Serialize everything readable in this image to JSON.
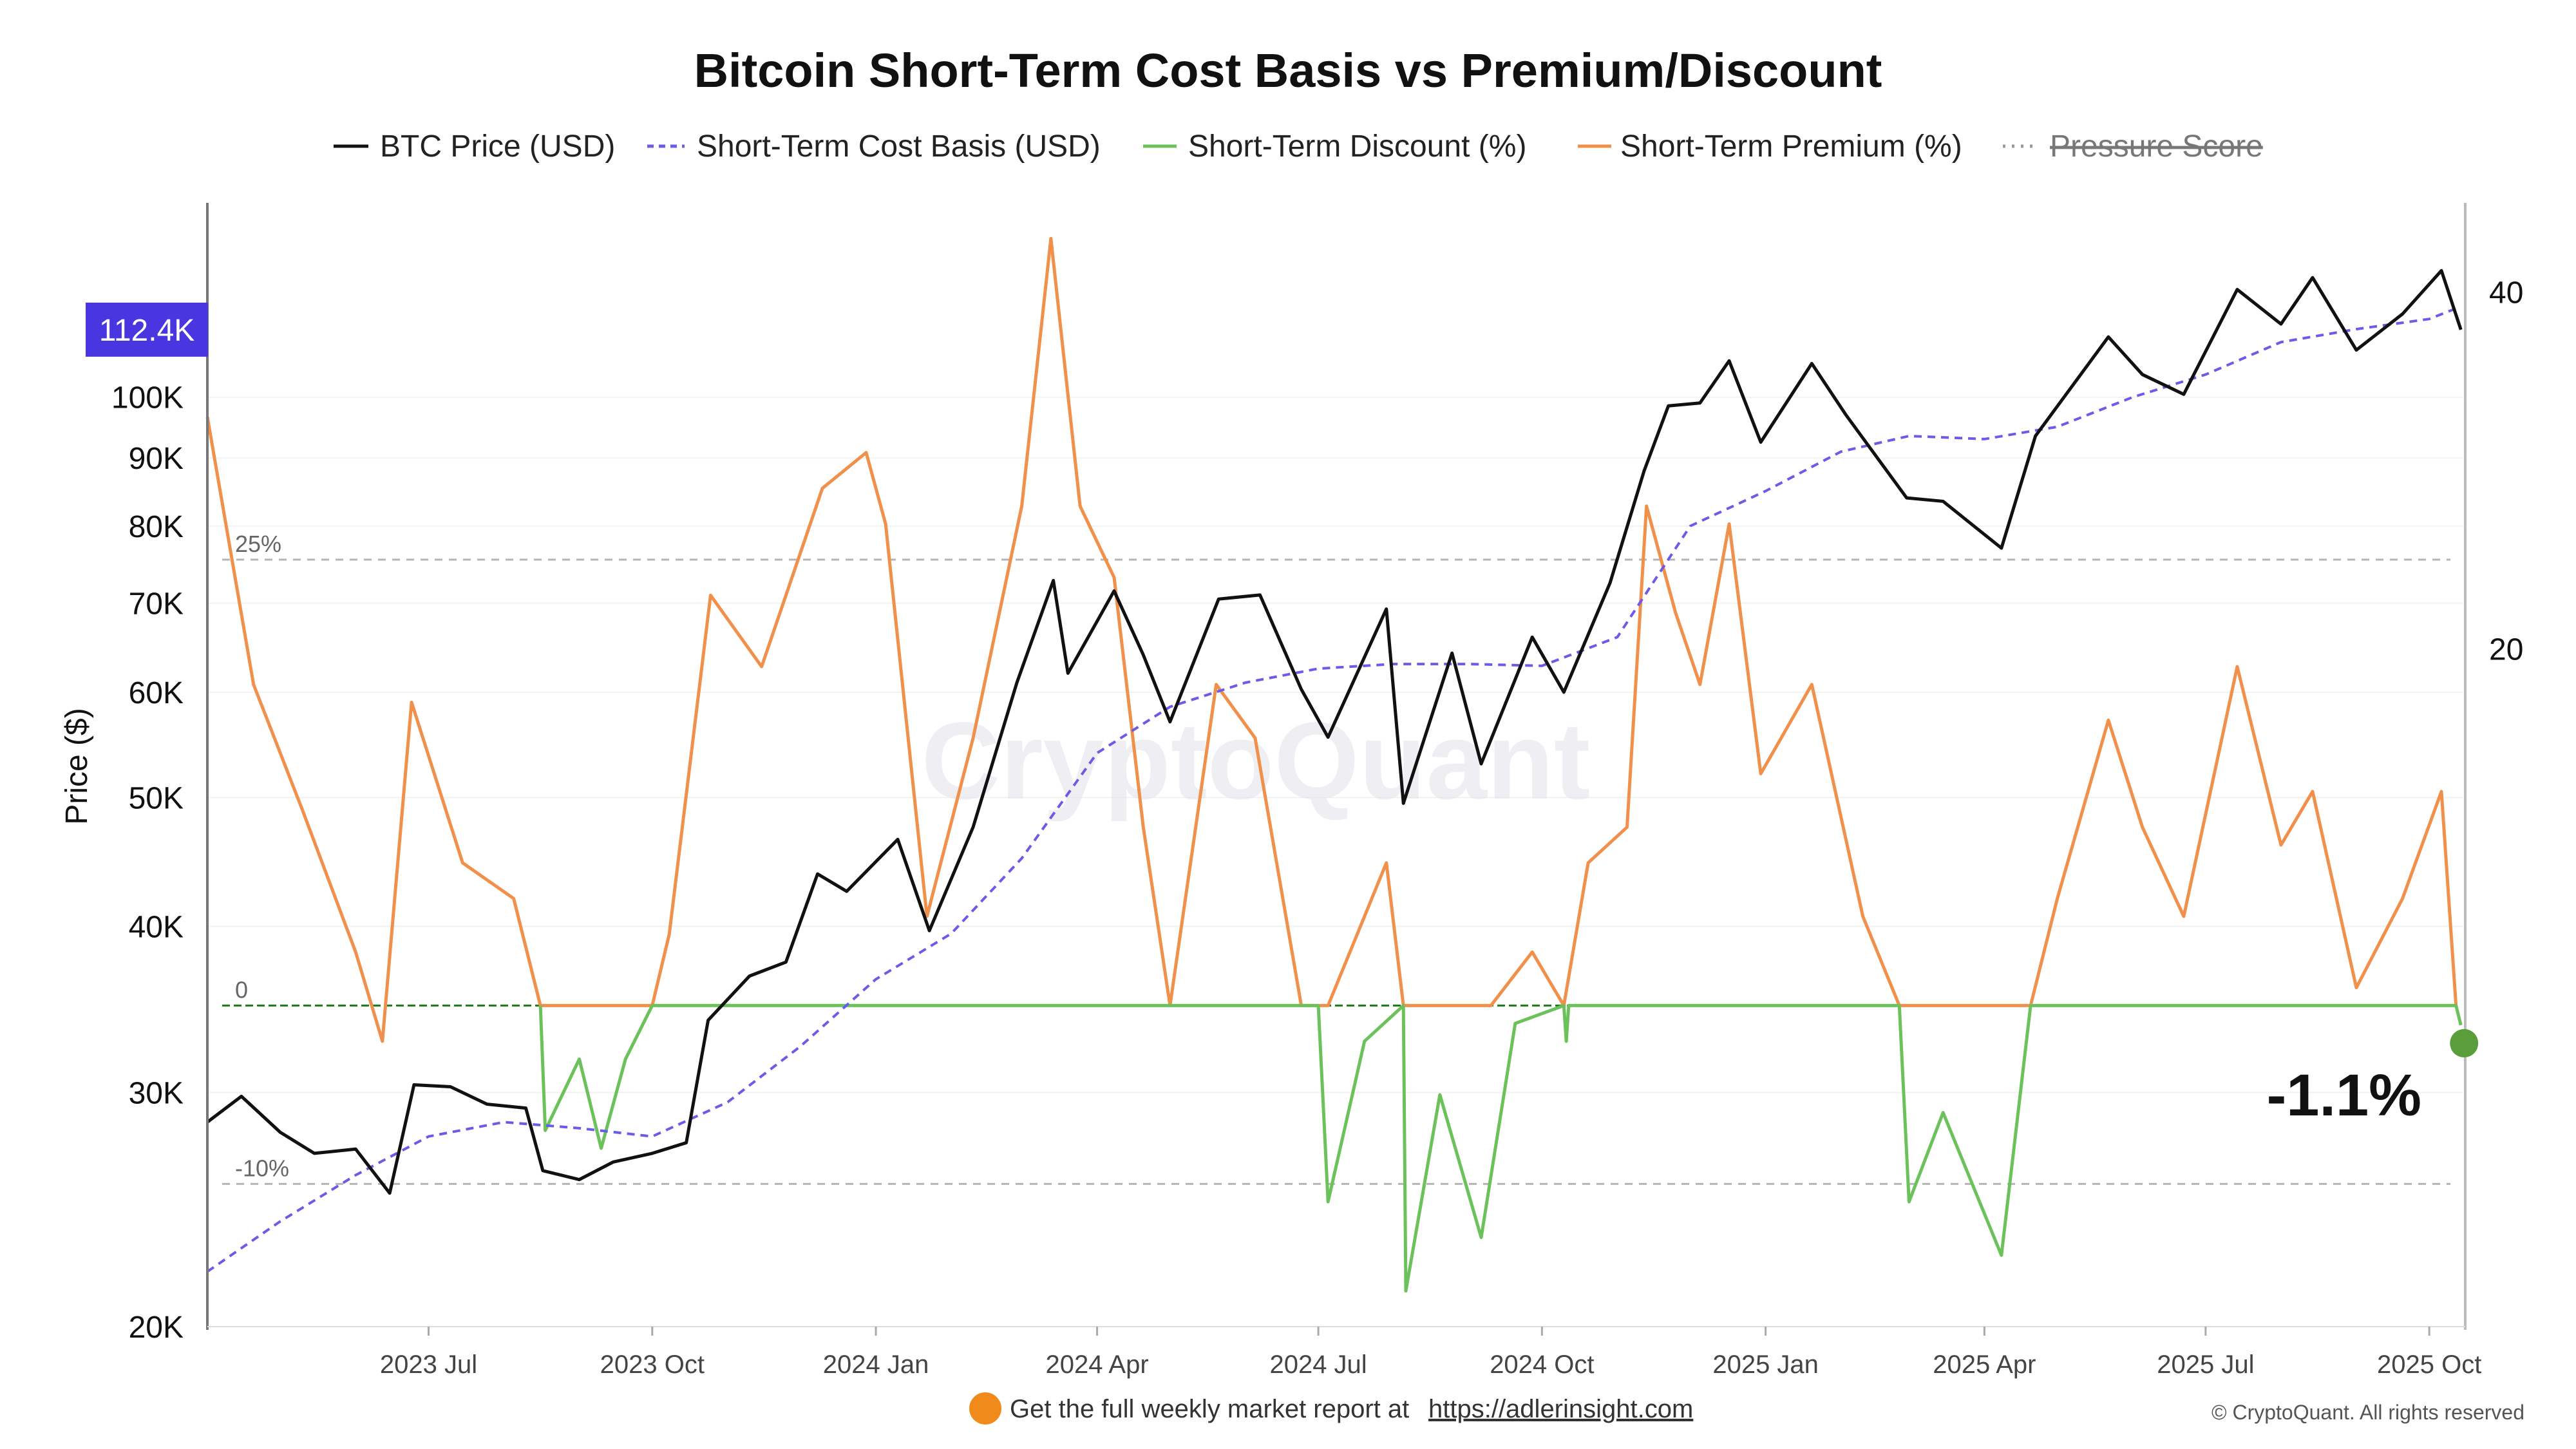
{
  "chart_data": {
    "type": "line",
    "title": "Bitcoin Short-Term Cost Basis vs Premium/Discount",
    "ylabel": "Price ($)",
    "y_scale": "log",
    "ylim": [
      20000,
      140000
    ],
    "y_ticks": [
      "20K",
      "30K",
      "40K",
      "50K",
      "60K",
      "70K",
      "80K",
      "90K",
      "100K"
    ],
    "y_tick_values": [
      20000,
      30000,
      40000,
      50000,
      60000,
      70000,
      80000,
      90000,
      100000
    ],
    "y2_ticks": [
      "20",
      "40"
    ],
    "y2_tick_values": [
      20,
      40
    ],
    "y2lim": [
      -18,
      45
    ],
    "x_ticks": [
      "2023 Jul",
      "2023 Oct",
      "2024 Jan",
      "2024 Apr",
      "2024 Jul",
      "2024 Oct",
      "2025 Jan",
      "2025 Apr",
      "2025 Jul",
      "2025 Oct"
    ],
    "x_tick_values": [
      "2023-07-01",
      "2023-10-01",
      "2024-01-01",
      "2024-04-01",
      "2024-07-01",
      "2024-10-01",
      "2025-01-01",
      "2025-04-01",
      "2025-07-01",
      "2025-10-01"
    ],
    "xlim": [
      "2023-04-01",
      "2025-10-15"
    ],
    "legend": [
      {
        "label": "BTC Price (USD)",
        "color": "#111111",
        "style": "solid",
        "hidden": false
      },
      {
        "label": "Short-Term Cost Basis (USD)",
        "color": "#6b5ce7",
        "style": "dashed",
        "hidden": false
      },
      {
        "label": "Short-Term Discount (%)",
        "color": "#6cc25a",
        "style": "solid",
        "hidden": false
      },
      {
        "label": "Short-Term Premium (%)",
        "color": "#f0904a",
        "style": "solid",
        "hidden": false
      },
      {
        "label": "Pressure Score",
        "color": "#999999",
        "style": "dotted",
        "hidden": true
      }
    ],
    "legend_position": "top-center",
    "current_price_badge": "112.4K",
    "current_price_value": 112400,
    "reference_lines": [
      {
        "label": "25%",
        "value": 25
      },
      {
        "label": "0",
        "value": 0
      },
      {
        "label": "-10%",
        "value": -10
      }
    ],
    "current_deviation_label": "-1.1%",
    "current_deviation_value": -1.1,
    "watermark": "CryptoQuant",
    "footer": {
      "prefix": "Get the full weekly market report at",
      "link": "https://adlerinsight.com",
      "copyright": "© CryptoQuant. All rights reserved"
    },
    "series": [
      {
        "name": "BTC Price (USD)",
        "points": [
          [
            "2023-04-01",
            28500
          ],
          [
            "2023-04-15",
            29800
          ],
          [
            "2023-05-01",
            28000
          ],
          [
            "2023-05-15",
            27000
          ],
          [
            "2023-06-01",
            27200
          ],
          [
            "2023-06-15",
            25200
          ],
          [
            "2023-06-25",
            30400
          ],
          [
            "2023-07-10",
            30300
          ],
          [
            "2023-07-25",
            29400
          ],
          [
            "2023-08-10",
            29200
          ],
          [
            "2023-08-17",
            26200
          ],
          [
            "2023-09-01",
            25800
          ],
          [
            "2023-09-15",
            26600
          ],
          [
            "2023-10-01",
            27000
          ],
          [
            "2023-10-15",
            27500
          ],
          [
            "2023-10-24",
            34000
          ],
          [
            "2023-11-10",
            36700
          ],
          [
            "2023-11-25",
            37600
          ],
          [
            "2023-12-08",
            43800
          ],
          [
            "2023-12-20",
            42500
          ],
          [
            "2024-01-10",
            46500
          ],
          [
            "2024-01-23",
            39700
          ],
          [
            "2024-02-10",
            47500
          ],
          [
            "2024-02-28",
            61000
          ],
          [
            "2024-03-14",
            72800
          ],
          [
            "2024-03-20",
            62000
          ],
          [
            "2024-04-08",
            71500
          ],
          [
            "2024-04-20",
            64000
          ],
          [
            "2024-05-01",
            57000
          ],
          [
            "2024-05-21",
            70500
          ],
          [
            "2024-06-07",
            71000
          ],
          [
            "2024-06-24",
            60300
          ],
          [
            "2024-07-05",
            55500
          ],
          [
            "2024-07-29",
            69300
          ],
          [
            "2024-08-05",
            49500
          ],
          [
            "2024-08-25",
            64200
          ],
          [
            "2024-09-06",
            53000
          ],
          [
            "2024-09-27",
            66000
          ],
          [
            "2024-10-10",
            60000
          ],
          [
            "2024-10-29",
            72500
          ],
          [
            "2024-11-12",
            88000
          ],
          [
            "2024-11-22",
            98500
          ],
          [
            "2024-12-05",
            99000
          ],
          [
            "2024-12-17",
            106500
          ],
          [
            "2024-12-30",
            92500
          ],
          [
            "2025-01-20",
            106000
          ],
          [
            "2025-02-03",
            97000
          ],
          [
            "2025-02-28",
            84000
          ],
          [
            "2025-03-15",
            83500
          ],
          [
            "2025-04-08",
            77000
          ],
          [
            "2025-04-22",
            93500
          ],
          [
            "2025-05-22",
            111000
          ],
          [
            "2025-06-05",
            104000
          ],
          [
            "2025-06-22",
            100500
          ],
          [
            "2025-07-14",
            120500
          ],
          [
            "2025-08-01",
            113500
          ],
          [
            "2025-08-14",
            123000
          ],
          [
            "2025-09-01",
            108500
          ],
          [
            "2025-09-20",
            115500
          ],
          [
            "2025-10-06",
            124500
          ],
          [
            "2025-10-14",
            112400
          ]
        ]
      },
      {
        "name": "Short-Term Cost Basis (USD)",
        "points": [
          [
            "2023-04-01",
            22000
          ],
          [
            "2023-05-01",
            24000
          ],
          [
            "2023-06-01",
            26000
          ],
          [
            "2023-07-01",
            27800
          ],
          [
            "2023-08-01",
            28500
          ],
          [
            "2023-09-01",
            28200
          ],
          [
            "2023-10-01",
            27800
          ],
          [
            "2023-11-01",
            29500
          ],
          [
            "2023-12-01",
            32500
          ],
          [
            "2024-01-01",
            36500
          ],
          [
            "2024-02-01",
            39500
          ],
          [
            "2024-03-01",
            45000
          ],
          [
            "2024-04-01",
            54000
          ],
          [
            "2024-05-01",
            58500
          ],
          [
            "2024-06-01",
            61000
          ],
          [
            "2024-07-01",
            62500
          ],
          [
            "2024-08-01",
            63000
          ],
          [
            "2024-09-01",
            63000
          ],
          [
            "2024-10-01",
            62800
          ],
          [
            "2024-11-01",
            66000
          ],
          [
            "2024-12-01",
            80000
          ],
          [
            "2025-01-01",
            85000
          ],
          [
            "2025-02-01",
            91000
          ],
          [
            "2025-03-01",
            93500
          ],
          [
            "2025-04-01",
            93000
          ],
          [
            "2025-05-01",
            95000
          ],
          [
            "2025-06-01",
            100000
          ],
          [
            "2025-07-01",
            104000
          ],
          [
            "2025-08-01",
            110000
          ],
          [
            "2025-09-01",
            112500
          ],
          [
            "2025-10-01",
            114500
          ],
          [
            "2025-10-14",
            117000
          ]
        ]
      },
      {
        "name": "Short-Term Premium (%)",
        "points": [
          [
            "2023-04-01",
            33
          ],
          [
            "2023-04-20",
            18
          ],
          [
            "2023-05-10",
            11
          ],
          [
            "2023-06-01",
            3
          ],
          [
            "2023-06-12",
            -2
          ],
          [
            "2023-06-24",
            17
          ],
          [
            "2023-07-15",
            8
          ],
          [
            "2023-08-05",
            6
          ],
          [
            "2023-08-16",
            0
          ],
          [
            "2023-10-01",
            0
          ],
          [
            "2023-10-08",
            4
          ],
          [
            "2023-10-25",
            23
          ],
          [
            "2023-11-15",
            19
          ],
          [
            "2023-12-10",
            29
          ],
          [
            "2023-12-28",
            31
          ],
          [
            "2024-01-05",
            27
          ],
          [
            "2024-01-22",
            5
          ],
          [
            "2024-02-10",
            15
          ],
          [
            "2024-03-01",
            28
          ],
          [
            "2024-03-13",
            43
          ],
          [
            "2024-03-25",
            28
          ],
          [
            "2024-04-08",
            24
          ],
          [
            "2024-04-20",
            10
          ],
          [
            "2024-05-01",
            0
          ],
          [
            "2024-05-20",
            18
          ],
          [
            "2024-06-05",
            15
          ],
          [
            "2024-06-24",
            0
          ],
          [
            "2024-07-05",
            0
          ],
          [
            "2024-07-20",
            5
          ],
          [
            "2024-07-29",
            8
          ],
          [
            "2024-08-05",
            0
          ],
          [
            "2024-09-10",
            0
          ],
          [
            "2024-09-27",
            3
          ],
          [
            "2024-10-10",
            0
          ],
          [
            "2024-10-20",
            8
          ],
          [
            "2024-11-05",
            10
          ],
          [
            "2024-11-13",
            28
          ],
          [
            "2024-11-25",
            22
          ],
          [
            "2024-12-05",
            18
          ],
          [
            "2024-12-17",
            27
          ],
          [
            "2024-12-30",
            13
          ],
          [
            "2025-01-20",
            18
          ],
          [
            "2025-02-10",
            5
          ],
          [
            "2025-02-25",
            0
          ],
          [
            "2025-04-20",
            0
          ],
          [
            "2025-05-01",
            6
          ],
          [
            "2025-05-22",
            16
          ],
          [
            "2025-06-05",
            10
          ],
          [
            "2025-06-22",
            5
          ],
          [
            "2025-07-14",
            19
          ],
          [
            "2025-08-01",
            9
          ],
          [
            "2025-08-14",
            12
          ],
          [
            "2025-09-01",
            1
          ],
          [
            "2025-09-20",
            6
          ],
          [
            "2025-10-06",
            12
          ],
          [
            "2025-10-12",
            0
          ]
        ]
      },
      {
        "name": "Short-Term Discount (%)",
        "points": [
          [
            "2023-08-16",
            0
          ],
          [
            "2023-08-18",
            -7
          ],
          [
            "2023-08-25",
            -5
          ],
          [
            "2023-09-01",
            -3
          ],
          [
            "2023-09-10",
            -8
          ],
          [
            "2023-09-20",
            -3
          ],
          [
            "2023-10-01",
            0
          ],
          [
            "2024-07-01",
            0
          ],
          [
            "2024-07-05",
            -11
          ],
          [
            "2024-07-20",
            -2
          ],
          [
            "2024-08-05",
            0
          ],
          [
            "2024-08-06",
            -16
          ],
          [
            "2024-08-20",
            -5
          ],
          [
            "2024-09-06",
            -13
          ],
          [
            "2024-09-20",
            -1
          ],
          [
            "2024-10-10",
            0
          ],
          [
            "2024-10-11",
            -2
          ],
          [
            "2024-10-12",
            0
          ],
          [
            "2025-02-25",
            0
          ],
          [
            "2025-03-01",
            -11
          ],
          [
            "2025-03-15",
            -6
          ],
          [
            "2025-04-08",
            -14
          ],
          [
            "2025-04-20",
            0
          ],
          [
            "2025-10-12",
            0
          ],
          [
            "2025-10-14",
            -1.1
          ]
        ]
      }
    ]
  }
}
